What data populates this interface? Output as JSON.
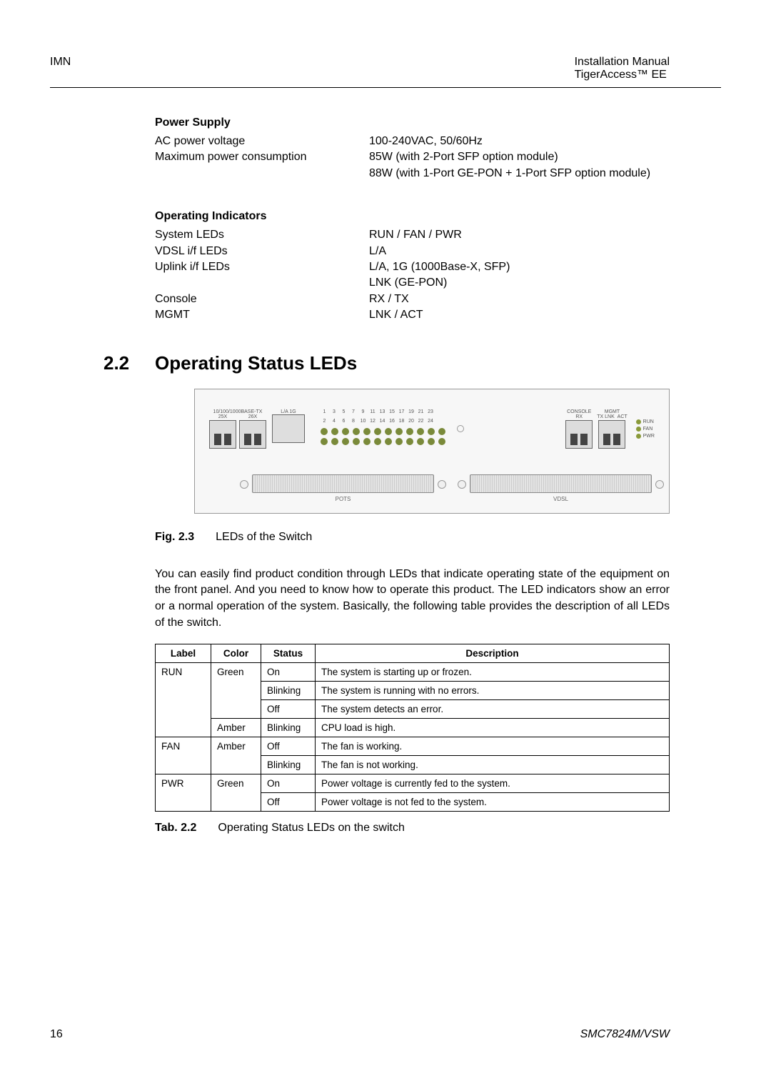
{
  "header": {
    "left": "IMN",
    "right_line1": "Installation Manual",
    "right_line2": "TigerAccess™ EE"
  },
  "power_supply": {
    "title": "Power Supply",
    "rows": [
      {
        "label": "AC power voltage",
        "value": "100-240VAC, 50/60Hz"
      },
      {
        "label": "Maximum power consumption",
        "value": "85W (with 2-Port SFP option module)\n88W (with 1-Port GE-PON + 1-Port SFP option module)"
      }
    ]
  },
  "operating_indicators": {
    "title": "Operating Indicators",
    "rows": [
      {
        "label": "System LEDs",
        "value": "RUN / FAN / PWR"
      },
      {
        "label": "VDSL i/f LEDs",
        "value": "L/A"
      },
      {
        "label": "Uplink i/f LEDs",
        "value": "L/A, 1G (1000Base-X, SFP)\nLNK (GE-PON)"
      },
      {
        "label": "Console",
        "value": "RX / TX"
      },
      {
        "label": "MGMT",
        "value": "LNK / ACT"
      }
    ]
  },
  "section": {
    "number": "2.2",
    "title": "Operating Status LEDs"
  },
  "figure": {
    "labels": {
      "base_tx": "10/100/1000BASE-TX",
      "port25": "25X",
      "port26": "26X",
      "la1g": "L/A 1G",
      "console": "CONSOLE",
      "mgmt": "MGMT",
      "rx": "RX",
      "txlnk": "TX LNK",
      "act": "ACT",
      "run": "RUN",
      "fan": "FAN",
      "pwr": "PWR",
      "pots": "POTS",
      "vdsl": "VDSL"
    },
    "led_numbers_top": [
      "1",
      "3",
      "5",
      "7",
      "9",
      "11",
      "13",
      "15",
      "17",
      "19",
      "21",
      "23"
    ],
    "led_numbers_bottom": [
      "2",
      "4",
      "6",
      "8",
      "10",
      "12",
      "14",
      "16",
      "18",
      "20",
      "22",
      "24"
    ],
    "caption_label": "Fig. 2.3",
    "caption_text": "LEDs of the Switch"
  },
  "body_paragraph": "You can easily find product condition through LEDs that indicate operating state of the equipment on the front panel. And you need to know how to operate this product. The LED indicators show an error or a normal operation of the system. Basically, the following table provides the description of all LEDs of the switch.",
  "led_table": {
    "columns": [
      "Label",
      "Color",
      "Status",
      "Description"
    ],
    "col_widths": [
      "78px",
      "70px",
      "76px",
      "auto"
    ],
    "rows": [
      {
        "label": "RUN",
        "label_rowspan": 4,
        "color": "Green",
        "color_rowspan": 3,
        "status": "On",
        "desc": "The system is starting up or frozen."
      },
      {
        "label": null,
        "color": null,
        "status": "Blinking",
        "desc": "The system is running with no errors."
      },
      {
        "label": null,
        "color": null,
        "status": "Off",
        "desc": "The system detects an error."
      },
      {
        "label": null,
        "color": "Amber",
        "color_rowspan": 1,
        "status": "Blinking",
        "desc": "CPU load is high."
      },
      {
        "label": "FAN",
        "label_rowspan": 2,
        "color": "Amber",
        "color_rowspan": 2,
        "status": "Off",
        "desc": "The fan is working."
      },
      {
        "label": null,
        "color": null,
        "status": "Blinking",
        "desc": "The fan is not working."
      },
      {
        "label": "PWR",
        "label_rowspan": 2,
        "color": "Green",
        "color_rowspan": 2,
        "status": "On",
        "desc": "Power voltage is currently fed to the system."
      },
      {
        "label": null,
        "color": null,
        "status": "Off",
        "desc": "Power voltage is not fed to the system."
      }
    ],
    "caption_label": "Tab. 2.2",
    "caption_text": "Operating Status LEDs on the switch"
  },
  "footer": {
    "page": "16",
    "model": "SMC7824M/VSW"
  },
  "colors": {
    "text": "#000000",
    "background": "#ffffff",
    "border": "#000000",
    "led_green": "#7a8a3a",
    "panel_bg": "#f7f7f7"
  }
}
